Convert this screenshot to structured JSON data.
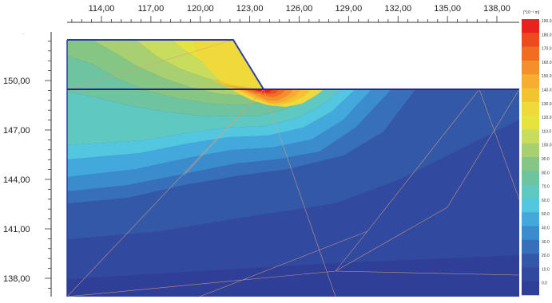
{
  "x_axis": {
    "ticks": [
      "114,00",
      "117,00",
      "120,00",
      "123,00",
      "126,00",
      "129,00",
      "132,00",
      "135,00",
      "138,00"
    ],
    "values": [
      114,
      117,
      120,
      123,
      126,
      129,
      132,
      135,
      138
    ]
  },
  "y_axis": {
    "ticks": [
      "150,00",
      "147,00",
      "144,00",
      "141,00",
      "138,00"
    ],
    "values": [
      150,
      147,
      144,
      141,
      138
    ]
  },
  "legend": {
    "unit": "[*10⁻³ m]",
    "labels": [
      "190.0",
      "180.0",
      "170.0",
      "160.0",
      "150.0",
      "140.0",
      "130.0",
      "120.0",
      "110.0",
      "100.0",
      "90.0",
      "80.0",
      "70.0",
      "60.0",
      "50.0",
      "40.0",
      "30.0",
      "20.0",
      "10.0",
      "0.0"
    ],
    "colors": [
      "#e8231e",
      "#ec4a1f",
      "#f06d22",
      "#f4902a",
      "#f6ad30",
      "#f3c432",
      "#f0d93a",
      "#e7e33e",
      "#c8dc5e",
      "#a8d070",
      "#86c684",
      "#6ec3a0",
      "#5ec8c1",
      "#52c7df",
      "#43a9dc",
      "#3a8ccd",
      "#376fba",
      "#3458a8",
      "#3249a0",
      "#2f3f98"
    ]
  },
  "colors": {
    "outline": "#1f2a8a",
    "mesh": "#d9a07a",
    "ruler": "#333333"
  }
}
